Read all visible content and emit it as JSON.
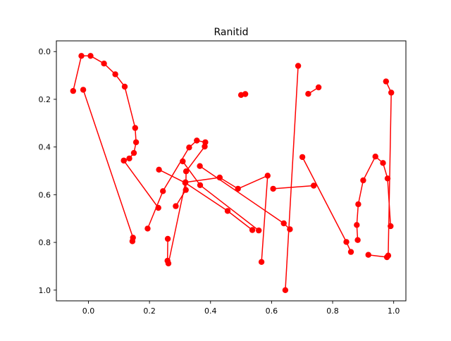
{
  "chart_data": {
    "type": "line",
    "title": "Ranitid",
    "xlabel": "",
    "ylabel": "",
    "xlim": [
      -0.105,
      1.04
    ],
    "ylim": [
      1.045,
      -0.045
    ],
    "y_inverted": true,
    "grid": false,
    "legend": "none",
    "x_ticks": [
      0.0,
      0.2,
      0.4,
      0.6,
      0.8,
      1.0
    ],
    "x_tick_labels": [
      "0.0",
      "0.2",
      "0.4",
      "0.6",
      "0.8",
      "1.0"
    ],
    "y_ticks": [
      0.0,
      0.2,
      0.4,
      0.6,
      0.8,
      1.0
    ],
    "y_tick_labels": [
      "0.0",
      "0.2",
      "0.4",
      "0.6",
      "0.8",
      "1.0"
    ],
    "series": [
      {
        "name": "stroke-1",
        "color": "#ff0000",
        "marker": "circle",
        "x": [
          -0.05,
          -0.023,
          0.007,
          0.051,
          0.088,
          0.119,
          0.153,
          0.156,
          0.149,
          0.134,
          0.116
        ],
        "y": [
          0.165,
          0.018,
          0.018,
          0.05,
          0.095,
          0.147,
          0.32,
          0.38,
          0.425,
          0.448,
          0.457
        ]
      },
      {
        "name": "stroke-2",
        "color": "#ff0000",
        "marker": "circle",
        "x": [
          -0.017,
          0.146,
          0.144
        ],
        "y": [
          0.16,
          0.78,
          0.795
        ]
      },
      {
        "name": "stroke-3",
        "color": "#ff0000",
        "marker": "circle",
        "x": [
          0.116,
          0.229
        ],
        "y": [
          0.457,
          0.655
        ]
      },
      {
        "name": "stroke-4",
        "color": "#ff0000",
        "marker": "circle",
        "x": [
          0.194,
          0.244,
          0.33,
          0.355,
          0.383,
          0.381,
          0.32,
          0.319,
          0.286
        ],
        "y": [
          0.742,
          0.585,
          0.402,
          0.373,
          0.38,
          0.398,
          0.502,
          0.58,
          0.648
        ]
      },
      {
        "name": "stroke-5",
        "color": "#ff0000",
        "marker": "circle",
        "x": [
          0.26,
          0.259,
          0.262,
          0.318,
          0.43,
          0.49,
          0.587,
          0.567
        ],
        "y": [
          0.785,
          0.877,
          0.888,
          0.548,
          0.528,
          0.575,
          0.52,
          0.882
        ]
      },
      {
        "name": "stroke-6",
        "color": "#ff0000",
        "marker": "circle",
        "x": [
          0.231,
          0.317,
          0.456,
          0.537
        ],
        "y": [
          0.495,
          0.55,
          0.668,
          0.748
        ]
      },
      {
        "name": "stroke-7",
        "color": "#ff0000",
        "marker": "circle",
        "x": [
          0.309,
          0.366,
          0.558
        ],
        "y": [
          0.46,
          0.56,
          0.75
        ]
      },
      {
        "name": "stroke-8",
        "color": "#ff0000",
        "marker": "circle",
        "x": [
          0.365,
          0.64,
          0.66
        ],
        "y": [
          0.48,
          0.72,
          0.745
        ]
      },
      {
        "name": "stroke-9",
        "color": "#ff0000",
        "marker": "circle",
        "x": [
          0.5,
          0.514
        ],
        "y": [
          0.182,
          0.178
        ]
      },
      {
        "name": "stroke-10",
        "color": "#ff0000",
        "marker": "circle",
        "x": [
          0.645,
          0.687
        ],
        "y": [
          1.0,
          0.06
        ]
      },
      {
        "name": "stroke-11",
        "color": "#ff0000",
        "marker": "circle",
        "x": [
          0.605,
          0.738
        ],
        "y": [
          0.575,
          0.562
        ]
      },
      {
        "name": "stroke-12",
        "color": "#ff0000",
        "marker": "circle",
        "x": [
          0.72,
          0.754
        ],
        "y": [
          0.177,
          0.15
        ]
      },
      {
        "name": "stroke-13",
        "color": "#ff0000",
        "marker": "circle",
        "x": [
          0.701,
          0.845,
          0.86
        ],
        "y": [
          0.442,
          0.798,
          0.84
        ]
      },
      {
        "name": "stroke-14",
        "color": "#ff0000",
        "marker": "circle",
        "x": [
          0.882,
          0.879,
          0.884,
          0.9,
          0.94,
          0.965,
          0.98,
          0.99
        ],
        "y": [
          0.79,
          0.727,
          0.64,
          0.54,
          0.44,
          0.467,
          0.532,
          0.732
        ]
      },
      {
        "name": "stroke-15",
        "color": "#ff0000",
        "marker": "circle",
        "x": [
          0.975,
          0.992,
          0.982,
          0.978,
          0.917
        ],
        "y": [
          0.125,
          0.172,
          0.855,
          0.862,
          0.852
        ]
      }
    ]
  }
}
